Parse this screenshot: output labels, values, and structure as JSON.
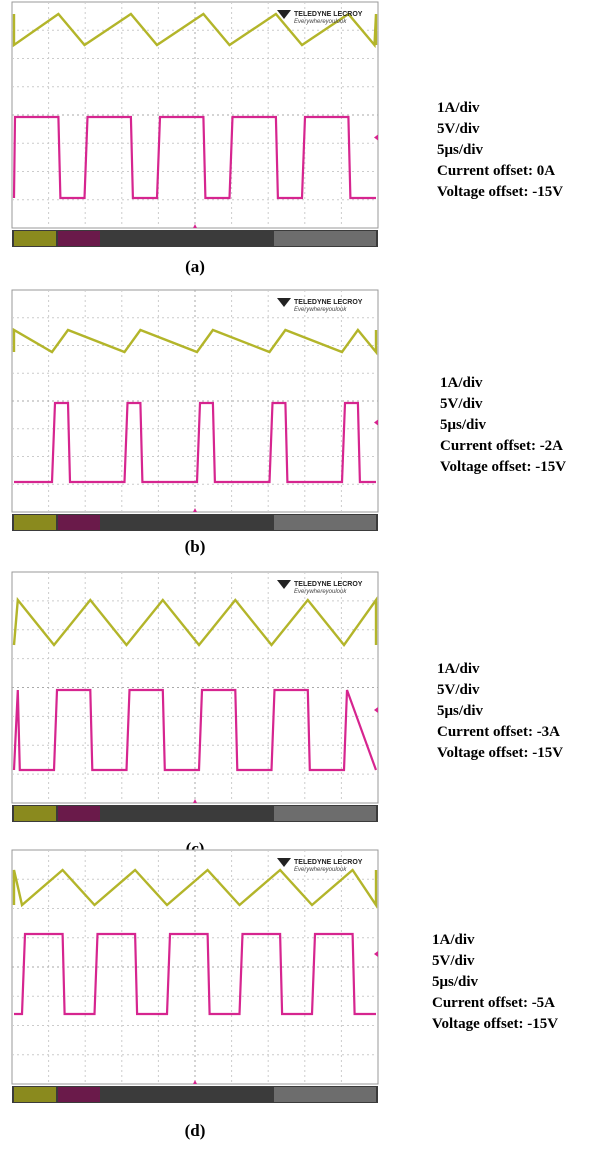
{
  "panels": [
    {
      "label": "(a)",
      "logo": "TELEDYNE LECROY",
      "tagline": "Everywhereyoulook",
      "settings": [
        "1A/div",
        "5V/div",
        "5μs/div",
        "Current offset: 0A",
        "Voltage offset: -15V"
      ]
    },
    {
      "label": "(b)",
      "logo": "TELEDYNE LECROY",
      "tagline": "Everywhereyoulook",
      "settings": [
        "1A/div",
        "5V/div",
        "5μs/div",
        "Current offset: -2A",
        "Voltage offset: -15V"
      ]
    },
    {
      "label": "(c)",
      "logo": "TELEDYNE LECROY",
      "tagline": "Everywhereyoulook",
      "settings": [
        "1A/div",
        "5V/div",
        "5μs/div",
        "Current offset: -3A",
        "Voltage offset: -15V"
      ]
    },
    {
      "label": "(d)",
      "logo": "TELEDYNE LECROY",
      "tagline": "Everywhereyoulook",
      "settings": [
        "1A/div",
        "5V/div",
        "5μs/div",
        "Current offset: -5A",
        "Voltage offset: -15V"
      ]
    }
  ]
}
